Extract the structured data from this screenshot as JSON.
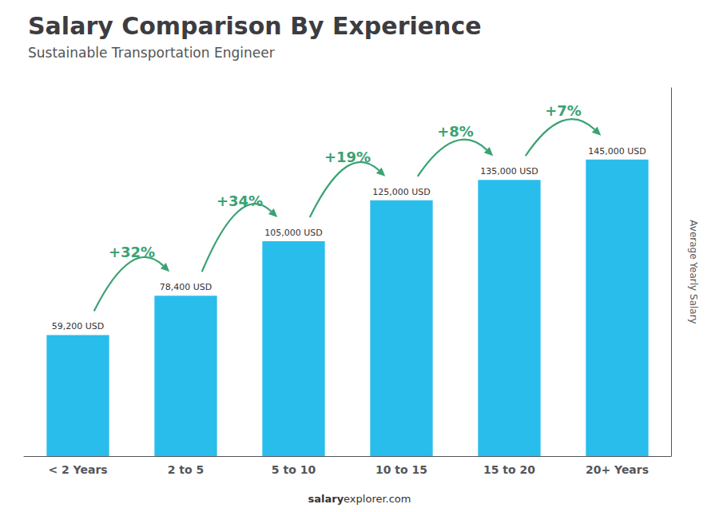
{
  "chart_data": {
    "type": "bar",
    "title": "Salary Comparison By Experience",
    "subtitle": "Sustainable Transportation Engineer",
    "ylabel": "Average Yearly Salary",
    "categories": [
      "< 2 Years",
      "2 to 5",
      "5 to 10",
      "10 to 15",
      "15 to 20",
      "20+ Years"
    ],
    "values": [
      59200,
      78400,
      105000,
      125000,
      135000,
      145000
    ],
    "value_labels": [
      "59,200 USD",
      "78,400 USD",
      "105,000 USD",
      "125,000 USD",
      "135,000 USD",
      "145,000 USD"
    ],
    "data_labels": true,
    "color": "#29BDEB",
    "ylim": [
      0,
      180000
    ],
    "tick_labels": "x",
    "grid": false,
    "annotations": [
      {
        "from": "< 2 Years",
        "to": "2 to 5",
        "text": "+32%"
      },
      {
        "from": "2 to 5",
        "to": "5 to 10",
        "text": "+34%"
      },
      {
        "from": "5 to 10",
        "to": "10 to 15",
        "text": "+19%"
      },
      {
        "from": "10 to 15",
        "to": "15 to 20",
        "text": "+8%"
      },
      {
        "from": "15 to 20",
        "to": "20+ Years",
        "text": "+7%"
      }
    ],
    "footer": [
      "salary",
      "explorer.com"
    ]
  }
}
